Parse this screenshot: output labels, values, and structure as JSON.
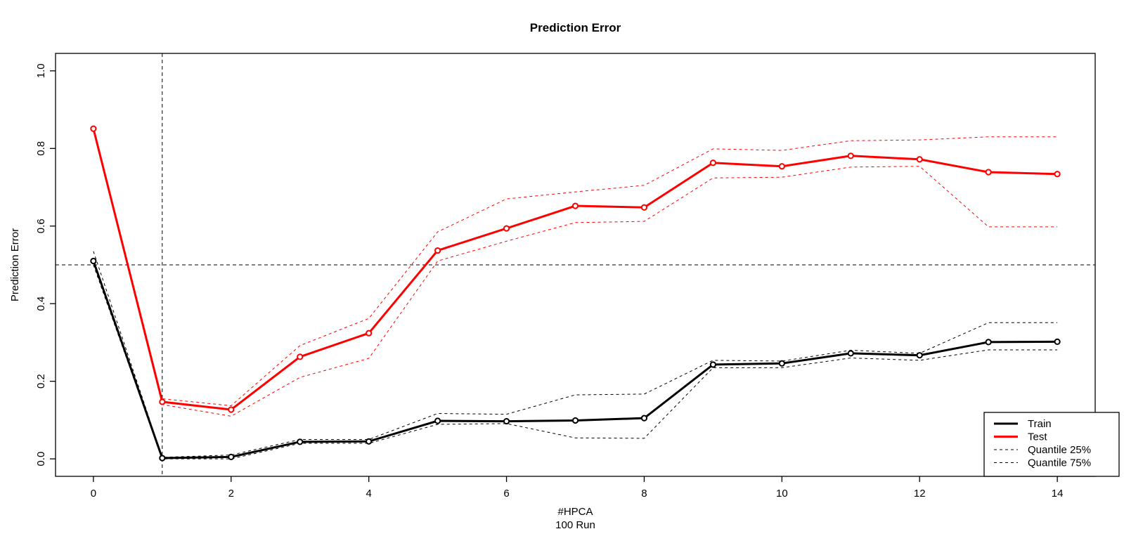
{
  "chart_data": {
    "type": "line",
    "title": "Prediction Error",
    "xlabel_line1": "#HPCA",
    "xlabel_line2": "100 Run",
    "ylabel": "Prediction Error",
    "x": [
      0,
      1,
      2,
      3,
      4,
      5,
      6,
      7,
      8,
      9,
      10,
      11,
      12,
      13,
      14
    ],
    "x_tick_labels": [
      "0",
      "2",
      "4",
      "6",
      "8",
      "10",
      "12",
      "14"
    ],
    "x_ticks": [
      0,
      2,
      4,
      6,
      8,
      10,
      12,
      14
    ],
    "y_tick_labels": [
      "0.0",
      "0.2",
      "0.4",
      "0.6",
      "0.8",
      "1.0"
    ],
    "y_ticks": [
      0.0,
      0.2,
      0.4,
      0.6,
      0.8,
      1.0
    ],
    "xlim": [
      -0.55,
      14.55
    ],
    "ylim": [
      -0.045,
      1.045
    ],
    "grid": false,
    "reference_lines": {
      "horizontal_y": 0.5,
      "vertical_x": 1
    },
    "colors": {
      "train": "#000000",
      "test": "#FF0000",
      "axis": "#000000",
      "background": "#FFFFFF"
    },
    "series": [
      {
        "name": "test-quantile-25",
        "color": "#FF0000",
        "style": "dashed",
        "width": 1,
        "marker": false,
        "values": [
          0.845,
          0.14,
          0.11,
          0.21,
          0.259,
          0.51,
          0.561,
          0.609,
          0.612,
          0.724,
          0.726,
          0.752,
          0.754,
          0.598,
          0.598
        ]
      },
      {
        "name": "test-quantile-75",
        "color": "#FF0000",
        "style": "dashed",
        "width": 1,
        "marker": false,
        "values": [
          0.856,
          0.155,
          0.137,
          0.292,
          0.362,
          0.585,
          0.67,
          0.688,
          0.705,
          0.799,
          0.795,
          0.82,
          0.822,
          0.83,
          0.83
        ]
      },
      {
        "name": "train-quantile-25",
        "color": "#000000",
        "style": "dashed",
        "width": 1,
        "marker": false,
        "values": [
          0.5,
          0.0,
          0.0,
          0.04,
          0.04,
          0.089,
          0.091,
          0.054,
          0.053,
          0.235,
          0.235,
          0.26,
          0.254,
          0.281,
          0.281
        ]
      },
      {
        "name": "train-quantile-75",
        "color": "#000000",
        "style": "dashed",
        "width": 1,
        "marker": false,
        "values": [
          0.535,
          0.004,
          0.01,
          0.05,
          0.05,
          0.117,
          0.115,
          0.165,
          0.167,
          0.254,
          0.252,
          0.28,
          0.272,
          0.351,
          0.351
        ]
      },
      {
        "name": "train",
        "color": "#000000",
        "style": "solid",
        "width": 3,
        "marker": true,
        "values": [
          0.51,
          0.002,
          0.005,
          0.044,
          0.045,
          0.098,
          0.097,
          0.099,
          0.105,
          0.243,
          0.246,
          0.272,
          0.267,
          0.301,
          0.302
        ]
      },
      {
        "name": "test",
        "color": "#FF0000",
        "style": "solid",
        "width": 3,
        "marker": true,
        "values": [
          0.851,
          0.147,
          0.127,
          0.263,
          0.324,
          0.537,
          0.594,
          0.652,
          0.648,
          0.763,
          0.754,
          0.781,
          0.772,
          0.739,
          0.734
        ]
      }
    ],
    "legend": {
      "position": "bottomright",
      "entries": [
        {
          "label": "Train",
          "color": "#000000",
          "style": "solid",
          "width": 3
        },
        {
          "label": "Test",
          "color": "#FF0000",
          "style": "solid",
          "width": 3
        },
        {
          "label": "Quantile 25%",
          "color": "#000000",
          "style": "dashed",
          "width": 1
        },
        {
          "label": "Quantile 75%",
          "color": "#000000",
          "style": "dashed",
          "width": 1
        }
      ]
    }
  }
}
